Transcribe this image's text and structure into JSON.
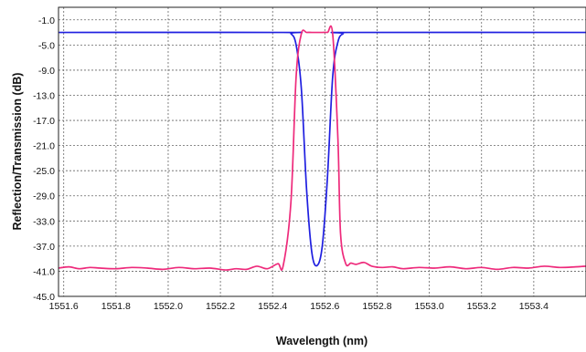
{
  "chart_data": {
    "type": "line",
    "title": "",
    "xlabel": "Wavelength (nm)",
    "ylabel": "Reflection/Transmission  (dB)",
    "xlim": [
      1551.58,
      1553.6
    ],
    "ylim": [
      -45.0,
      1.0
    ],
    "grid": true,
    "xticks": [
      "1551.6",
      "1551.8",
      "1552.0",
      "1552.2",
      "1552.4",
      "1552.6",
      "1552.8",
      "1553.0",
      "1553.2",
      "1553.4"
    ],
    "yticks": [
      "-1.0",
      "-5.0",
      "-9.0",
      "-13.0",
      "-17.0",
      "-21.0",
      "-25.0",
      "-29.0",
      "-33.0",
      "-37.0",
      "-41.0",
      "-45.0"
    ],
    "series": [
      {
        "color": "#1f1fe0",
        "x": [
          1551.58,
          1552.44,
          1552.47,
          1552.49,
          1552.51,
          1552.53,
          1552.55,
          1552.57,
          1552.59,
          1552.61,
          1552.63,
          1552.65,
          1552.67,
          1552.7,
          1553.6
        ],
        "y": [
          -3.0,
          -3.0,
          -3.2,
          -5.0,
          -12.0,
          -28.0,
          -38.0,
          -40.1,
          -37.0,
          -26.0,
          -10.0,
          -4.5,
          -3.2,
          -3.0,
          -3.0
        ]
      },
      {
        "color": "#ee2a7b",
        "x": [
          1551.58,
          1551.62,
          1551.66,
          1551.7,
          1551.74,
          1551.8,
          1551.86,
          1551.92,
          1551.98,
          1552.04,
          1552.1,
          1552.16,
          1552.22,
          1552.26,
          1552.3,
          1552.34,
          1552.38,
          1552.42,
          1552.44,
          1552.47,
          1552.49,
          1552.51,
          1552.53,
          1552.55,
          1552.57,
          1552.59,
          1552.61,
          1552.63,
          1552.65,
          1552.66,
          1552.68,
          1552.7,
          1552.72,
          1552.75,
          1552.78,
          1552.82,
          1552.86,
          1552.9,
          1552.96,
          1553.02,
          1553.08,
          1553.14,
          1553.2,
          1553.26,
          1553.32,
          1553.38,
          1553.44,
          1553.5,
          1553.56,
          1553.6
        ],
        "y": [
          -40.5,
          -40.3,
          -40.6,
          -40.4,
          -40.5,
          -40.6,
          -40.4,
          -40.5,
          -40.7,
          -40.4,
          -40.6,
          -40.5,
          -40.8,
          -40.6,
          -40.7,
          -40.2,
          -40.6,
          -39.8,
          -40.2,
          -30.0,
          -10.0,
          -3.2,
          -3.0,
          -3.0,
          -3.0,
          -3.0,
          -3.0,
          -3.3,
          -20.0,
          -35.0,
          -39.8,
          -39.7,
          -39.9,
          -39.6,
          -40.2,
          -40.4,
          -40.3,
          -40.6,
          -40.4,
          -40.5,
          -40.3,
          -40.6,
          -40.4,
          -40.7,
          -40.4,
          -40.5,
          -40.2,
          -40.4,
          -40.3,
          -40.2
        ]
      }
    ]
  }
}
